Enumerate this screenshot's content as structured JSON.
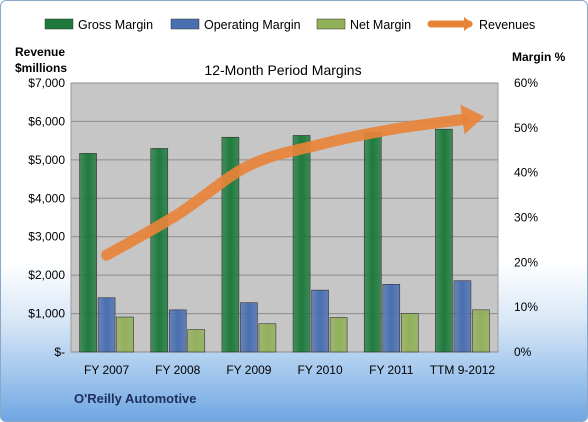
{
  "chart_data": {
    "type": "bar",
    "title": "12-Month Period Margins",
    "company": "O'Reilly Automotive",
    "categories": [
      "FY 2007",
      "FY 2008",
      "FY 2009",
      "FY 2010",
      "FY 2011",
      "TTM 9-2012"
    ],
    "left_axis": {
      "title_lines": [
        "Revenue",
        "$millions"
      ],
      "ylim": [
        0,
        7000
      ],
      "tick_labels": [
        "$-",
        "$1,000",
        "$2,000",
        "$3,000",
        "$4,000",
        "$5,000",
        "$6,000",
        "$7,000"
      ]
    },
    "right_axis": {
      "title": "Margin %",
      "ylim": [
        0,
        60
      ],
      "tick_labels": [
        "0%",
        "10%",
        "20%",
        "30%",
        "40%",
        "50%",
        "60%"
      ]
    },
    "series": [
      {
        "name": "Gross Margin",
        "type": "bar",
        "axis": "right",
        "color": "#1e7a3c",
        "values": [
          44.3,
          45.4,
          47.9,
          48.3,
          48.9,
          49.7
        ]
      },
      {
        "name": "Operating Margin",
        "type": "bar",
        "axis": "right",
        "color": "#4a6fb0",
        "values": [
          12.1,
          9.4,
          11.0,
          13.8,
          15.1,
          15.9
        ]
      },
      {
        "name": "Net Margin",
        "type": "bar",
        "axis": "right",
        "color": "#92b05a",
        "values": [
          7.8,
          5.0,
          6.3,
          7.7,
          8.6,
          9.4
        ]
      },
      {
        "name": "Revenues",
        "type": "line",
        "axis": "left",
        "color": "#e8833a",
        "values": [
          2520,
          3580,
          4850,
          5400,
          5790,
          6050
        ]
      }
    ],
    "grid": true,
    "legend_position": "top"
  }
}
